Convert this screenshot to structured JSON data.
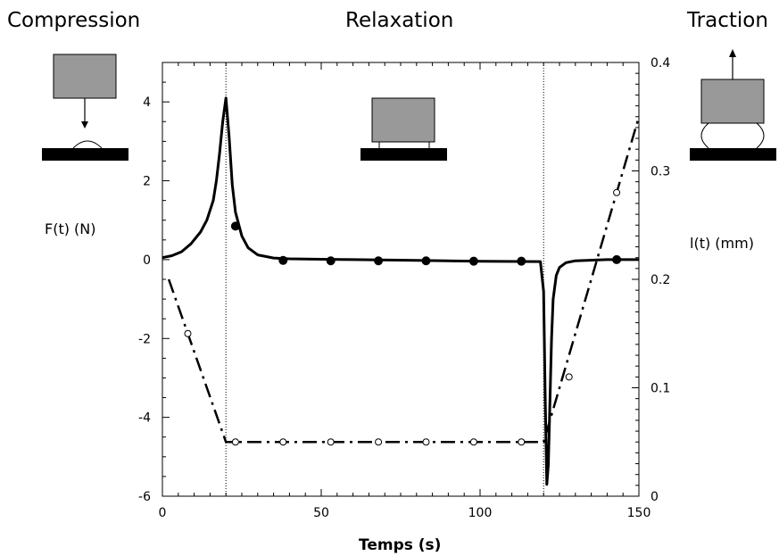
{
  "phase_labels": {
    "compression": "Compression",
    "relaxation": "Relaxation",
    "traction": "Traction"
  },
  "chart_data": {
    "type": "line",
    "xlabel": "Temps (s)",
    "ylabel_left": "F(t) (N)",
    "ylabel_right": "l(t) (mm)",
    "xlim": [
      0,
      150
    ],
    "ylim_left": [
      -6,
      5
    ],
    "ylim_right": [
      0,
      0.4
    ],
    "xticks": [
      0,
      50,
      100,
      150
    ],
    "yticks_left": [
      -6,
      -4,
      -2,
      0,
      2,
      4
    ],
    "yticks_right": [
      0,
      0.1,
      0.2,
      0.3,
      0.4
    ],
    "phase_boundaries_x": [
      20,
      120
    ],
    "series": [
      {
        "axis": "left",
        "style": "solid",
        "color": "#000000",
        "x": [
          0,
          3,
          6,
          9,
          12,
          14,
          16,
          17,
          18,
          19,
          20,
          21,
          22,
          23,
          25,
          27,
          30,
          35,
          40,
          50,
          60,
          80,
          100,
          119,
          120,
          120.5,
          121,
          121.5,
          122,
          122.5,
          123,
          124,
          125,
          127,
          130,
          140,
          150
        ],
        "y": [
          0.05,
          0.1,
          0.2,
          0.4,
          0.7,
          1.0,
          1.5,
          2.0,
          2.7,
          3.5,
          4.1,
          3.1,
          1.9,
          1.2,
          0.6,
          0.3,
          0.12,
          0.04,
          0.02,
          0.01,
          0.0,
          -0.02,
          -0.04,
          -0.05,
          -0.8,
          -3.5,
          -5.7,
          -5.2,
          -3.6,
          -2.0,
          -1.0,
          -0.4,
          -0.2,
          -0.08,
          -0.03,
          0.0,
          0.0
        ]
      },
      {
        "axis": "left",
        "style": "filled-markers",
        "color": "#000000",
        "x": [
          23,
          38,
          53,
          68,
          83,
          98,
          113,
          143
        ],
        "y": [
          0.85,
          -0.02,
          -0.03,
          -0.03,
          -0.03,
          -0.04,
          -0.04,
          0.0
        ]
      },
      {
        "axis": "right",
        "style": "dashed",
        "color": "#000000",
        "x": [
          2,
          20,
          120,
          150
        ],
        "y": [
          0.2,
          0.05,
          0.05,
          0.35
        ]
      },
      {
        "axis": "right",
        "style": "open-markers",
        "color": "#000000",
        "x": [
          8,
          23,
          38,
          53,
          68,
          83,
          98,
          113,
          128,
          143
        ],
        "y": [
          0.15,
          0.05,
          0.05,
          0.05,
          0.05,
          0.05,
          0.05,
          0.05,
          0.11,
          0.28
        ]
      }
    ]
  }
}
